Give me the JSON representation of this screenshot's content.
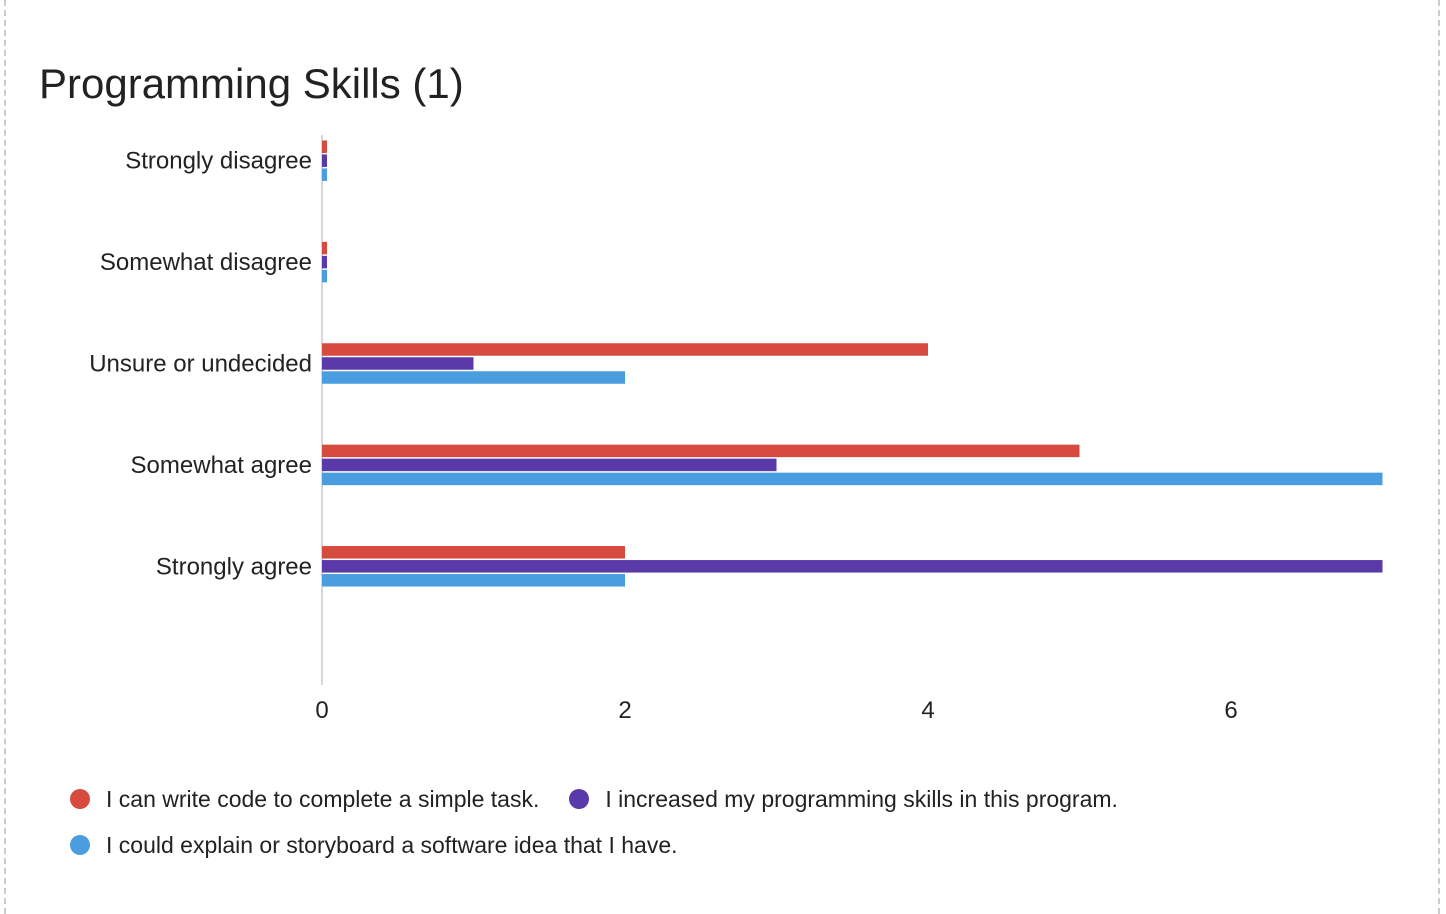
{
  "colors": {
    "series_1": "#d64a3f",
    "series_2": "#5a3aa8",
    "series_3": "#4a9ee0",
    "axis_line": "#cccccc"
  },
  "chart_data": {
    "type": "bar",
    "orientation": "horizontal",
    "title": "Programming Skills (1)",
    "xlabel": "",
    "ylabel": "",
    "categories": [
      "Strongly disagree",
      "Somewhat disagree",
      "Unsure or undecided",
      "Somewhat agree",
      "Strongly agree"
    ],
    "series": [
      {
        "name": "I can write code to complete a simple task.",
        "color": "#d64a3f",
        "values": [
          0,
          0,
          4,
          5,
          2
        ]
      },
      {
        "name": "I increased my programming skills in this program.",
        "color": "#5a3aa8",
        "values": [
          0,
          0,
          1,
          3,
          7
        ]
      },
      {
        "name": "I could explain or storyboard a software idea that I have.",
        "color": "#4a9ee0",
        "values": [
          0,
          0,
          2,
          7,
          2
        ]
      }
    ],
    "xlim": [
      0,
      7
    ],
    "xticks": [
      0,
      2,
      4,
      6
    ],
    "grid": false,
    "legend_position": "bottom"
  }
}
